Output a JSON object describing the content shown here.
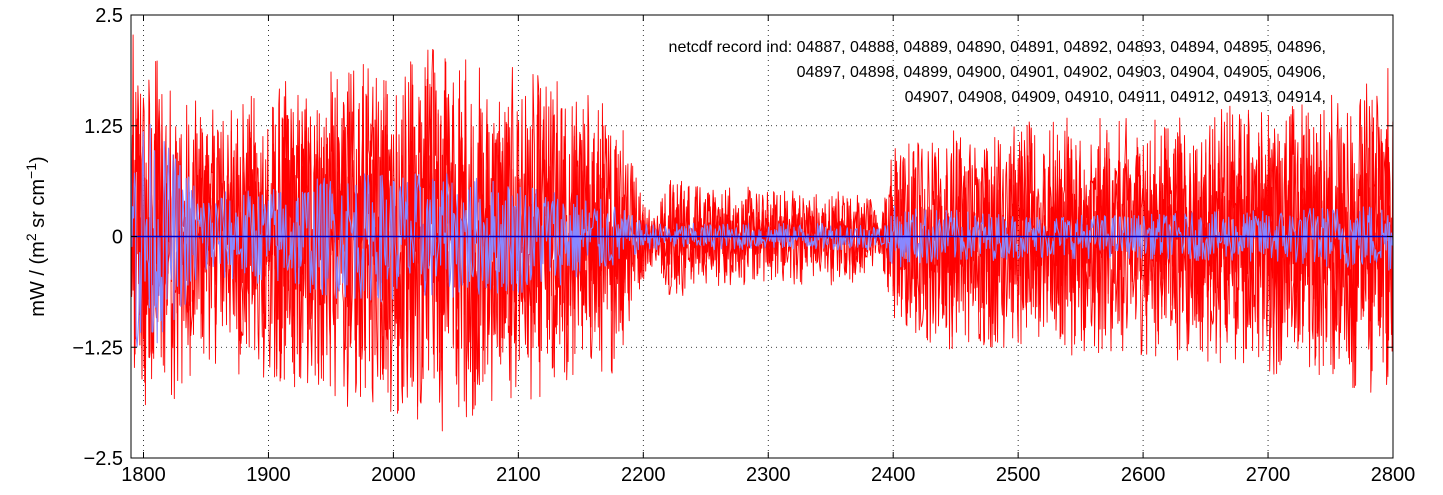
{
  "chart_data": {
    "type": "line",
    "title": "",
    "xlabel": "",
    "ylabel": "mW / (m² sr cm⁻¹)",
    "ylabel_parts": [
      "mW / (m",
      "2",
      " sr cm",
      "−1",
      ")"
    ],
    "xlim": [
      1790,
      2800
    ],
    "ylim": [
      -2.5,
      2.5
    ],
    "x_ticks": [
      1800,
      1900,
      2000,
      2100,
      2200,
      2300,
      2400,
      2500,
      2600,
      2700,
      2800
    ],
    "x_tick_labels": [
      "1800",
      "1900",
      "2000",
      "2100",
      "2200",
      "2300",
      "2400",
      "2500",
      "2600",
      "2700",
      "2800"
    ],
    "y_ticks": [
      -2.5,
      -1.25,
      0,
      1.25,
      2.5
    ],
    "y_tick_labels": [
      "−2.5",
      "−1.25",
      "0",
      "1.25",
      "2.5"
    ],
    "grid": true,
    "annotation_lines": [
      "netcdf record ind:  04887, 04888, 04889, 04890, 04891, 04892, 04893, 04894, 04895, 04896,",
      "04897, 04898, 04899, 04900, 04901, 04902, 04903, 04904, 04905, 04906,",
      "04907, 04908, 04909, 04910, 04911, 04912, 04913, 04914,"
    ],
    "series": [
      {
        "color": "#ff0000",
        "style": "noise-envelope",
        "x": [
          1790,
          1800,
          1850,
          1900,
          1950,
          2000,
          2030,
          2050,
          2100,
          2150,
          2180,
          2200,
          2210,
          2225,
          2240,
          2300,
          2350,
          2380,
          2390,
          2400,
          2450,
          2500,
          2550,
          2600,
          2650,
          2700,
          2750,
          2800
        ],
        "amplitude": [
          2.3,
          2.3,
          1.4,
          1.75,
          1.9,
          2.05,
          2.35,
          2.1,
          1.9,
          1.8,
          1.5,
          0.5,
          0.3,
          0.8,
          0.6,
          0.55,
          0.55,
          0.5,
          0.25,
          1.1,
          1.3,
          1.3,
          1.35,
          1.35,
          1.45,
          1.55,
          1.65,
          1.95
        ]
      },
      {
        "color": "#8888ff",
        "style": "noise-envelope",
        "x": [
          1790,
          1800,
          1850,
          1900,
          1950,
          2000,
          2050,
          2100,
          2150,
          2180,
          2200,
          2220,
          2240,
          2300,
          2350,
          2380,
          2390,
          2400,
          2500,
          2600,
          2700,
          2800
        ],
        "amplitude": [
          1.45,
          1.4,
          0.5,
          0.55,
          0.7,
          0.75,
          0.7,
          0.65,
          0.5,
          0.35,
          0.15,
          0.15,
          0.15,
          0.15,
          0.15,
          0.15,
          0.1,
          0.35,
          0.25,
          0.25,
          0.3,
          0.4
        ]
      },
      {
        "color": "#0000cc",
        "style": "mean-line",
        "x": [
          1790,
          2800
        ],
        "y": [
          0,
          0
        ]
      }
    ]
  }
}
